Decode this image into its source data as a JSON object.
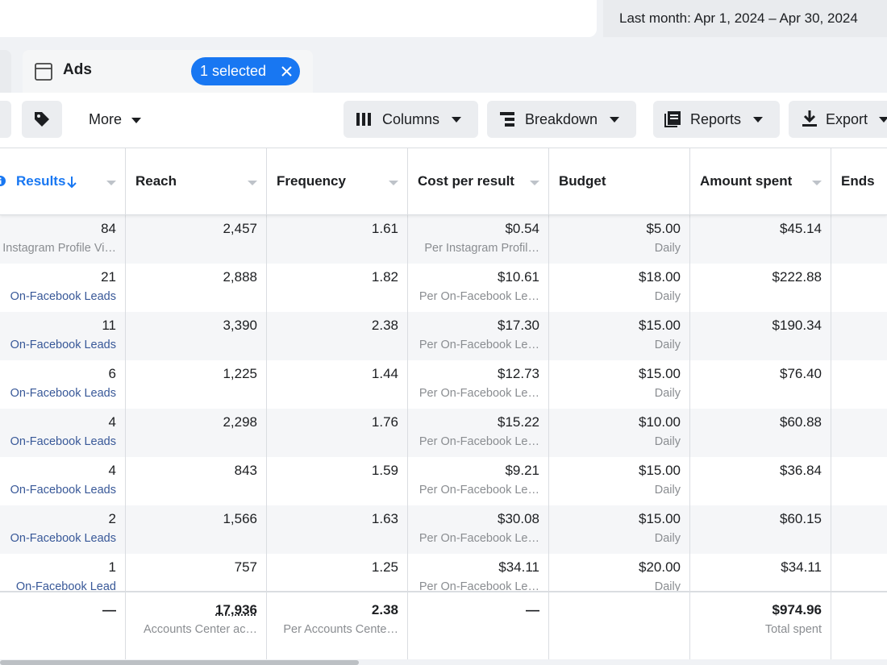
{
  "date_range": "Last month: Apr 1, 2024 – Apr 30, 2024",
  "tab": {
    "label": "Ads",
    "selected": "1 selected"
  },
  "toolbar": {
    "more": "More",
    "columns": "Columns",
    "breakdown": "Breakdown",
    "reports": "Reports",
    "export": "Export"
  },
  "table": {
    "headers": {
      "results": "Results",
      "reach": "Reach",
      "frequency": "Frequency",
      "cost": "Cost per result",
      "budget": "Budget",
      "spent": "Amount spent",
      "ends": "Ends"
    },
    "rows": [
      {
        "results": "84",
        "result_type": "Instagram Profile Vi…",
        "reach": "2,457",
        "frequency": "1.61",
        "cost": "$0.54",
        "cost_type": "Per Instagram Profil…",
        "budget": "$5.00",
        "budget_type": "Daily",
        "spent": "$45.14"
      },
      {
        "results": "21",
        "result_type": "On-Facebook Leads",
        "reach": "2,888",
        "frequency": "1.82",
        "cost": "$10.61",
        "cost_type": "Per On-Facebook Le…",
        "budget": "$18.00",
        "budget_type": "Daily",
        "spent": "$222.88"
      },
      {
        "results": "11",
        "result_type": "On-Facebook Leads",
        "reach": "3,390",
        "frequency": "2.38",
        "cost": "$17.30",
        "cost_type": "Per On-Facebook Le…",
        "budget": "$15.00",
        "budget_type": "Daily",
        "spent": "$190.34"
      },
      {
        "results": "6",
        "result_type": "On-Facebook Leads",
        "reach": "1,225",
        "frequency": "1.44",
        "cost": "$12.73",
        "cost_type": "Per On-Facebook Le…",
        "budget": "$15.00",
        "budget_type": "Daily",
        "spent": "$76.40"
      },
      {
        "results": "4",
        "result_type": "On-Facebook Leads",
        "reach": "2,298",
        "frequency": "1.76",
        "cost": "$15.22",
        "cost_type": "Per On-Facebook Le…",
        "budget": "$10.00",
        "budget_type": "Daily",
        "spent": "$60.88"
      },
      {
        "results": "4",
        "result_type": "On-Facebook Leads",
        "reach": "843",
        "frequency": "1.59",
        "cost": "$9.21",
        "cost_type": "Per On-Facebook Le…",
        "budget": "$15.00",
        "budget_type": "Daily",
        "spent": "$36.84"
      },
      {
        "results": "2",
        "result_type": "On-Facebook Leads",
        "reach": "1,566",
        "frequency": "1.63",
        "cost": "$30.08",
        "cost_type": "Per On-Facebook Le…",
        "budget": "$15.00",
        "budget_type": "Daily",
        "spent": "$60.15"
      },
      {
        "results": "1",
        "result_type": "On-Facebook Lead",
        "reach": "757",
        "frequency": "1.25",
        "cost": "$34.11",
        "cost_type": "Per On-Facebook Le…",
        "budget": "$20.00",
        "budget_type": "Daily",
        "spent": "$34.11"
      }
    ],
    "totals": {
      "results": "—",
      "reach": "17,936",
      "reach_note": "Accounts Center ac…",
      "frequency": "2.38",
      "frequency_note": "Per Accounts Cente…",
      "cost": "—",
      "spent": "$974.96",
      "spent_note": "Total spent"
    }
  }
}
